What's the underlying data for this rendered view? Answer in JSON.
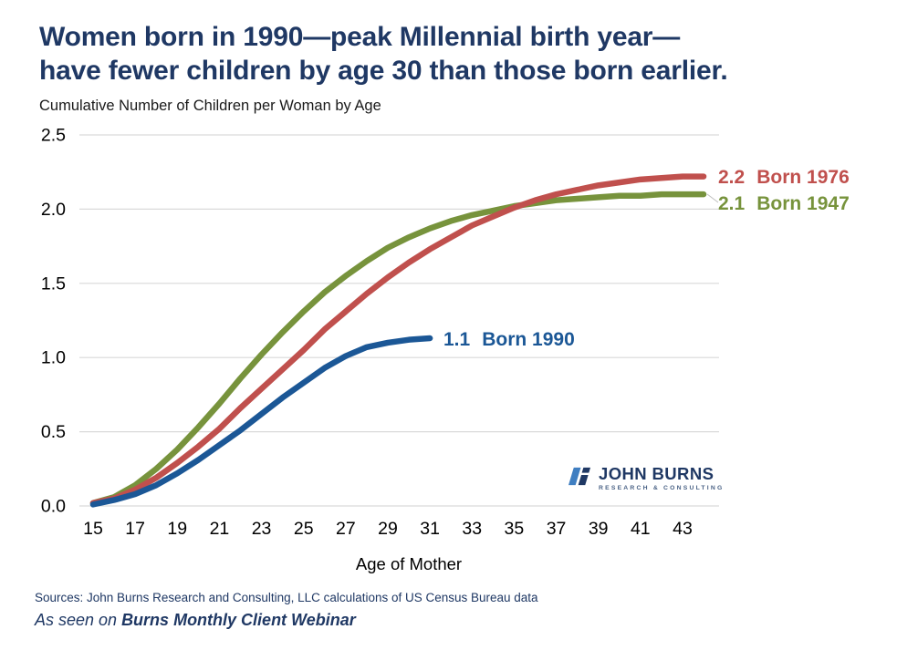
{
  "header": {
    "title_line1": "Women born in 1990—peak Millennial birth year—",
    "title_line2": "have fewer children by age 30 than those born earlier.",
    "subtitle": "Cumulative Number of Children per Woman by Age"
  },
  "chart_data": {
    "type": "line",
    "title": "Cumulative Number of Children per Woman by Age",
    "xlabel": "Age of Mother",
    "ylabel": "",
    "xlim": [
      15,
      44
    ],
    "ylim": [
      0,
      2.5
    ],
    "x_ticks": [
      15,
      17,
      19,
      21,
      23,
      25,
      27,
      29,
      31,
      33,
      35,
      37,
      39,
      41,
      43
    ],
    "y_ticks": [
      "0.0",
      "0.5",
      "1.0",
      "1.5",
      "2.0",
      "2.5"
    ],
    "grid": "horizontal",
    "gridline_color": "#D9D9D9",
    "series": [
      {
        "name": "Born 1947",
        "color": "#77933C",
        "end_label": "2.1",
        "x": [
          15,
          16,
          17,
          18,
          19,
          20,
          21,
          22,
          23,
          24,
          25,
          26,
          27,
          28,
          29,
          30,
          31,
          32,
          33,
          34,
          35,
          36,
          37,
          38,
          39,
          40,
          41,
          42,
          43,
          44
        ],
        "values": [
          0.02,
          0.06,
          0.14,
          0.25,
          0.38,
          0.53,
          0.69,
          0.86,
          1.02,
          1.17,
          1.31,
          1.44,
          1.55,
          1.65,
          1.74,
          1.81,
          1.87,
          1.92,
          1.96,
          1.99,
          2.02,
          2.04,
          2.06,
          2.07,
          2.08,
          2.09,
          2.09,
          2.1,
          2.1,
          2.1
        ]
      },
      {
        "name": "Born 1976",
        "color": "#C0504D",
        "end_label": "2.2",
        "x": [
          15,
          16,
          17,
          18,
          19,
          20,
          21,
          22,
          23,
          24,
          25,
          26,
          27,
          28,
          29,
          30,
          31,
          32,
          33,
          34,
          35,
          36,
          37,
          38,
          39,
          40,
          41,
          42,
          43,
          44
        ],
        "values": [
          0.02,
          0.05,
          0.11,
          0.19,
          0.29,
          0.4,
          0.52,
          0.66,
          0.79,
          0.92,
          1.05,
          1.19,
          1.31,
          1.43,
          1.54,
          1.64,
          1.73,
          1.81,
          1.89,
          1.95,
          2.01,
          2.06,
          2.1,
          2.13,
          2.16,
          2.18,
          2.2,
          2.21,
          2.22,
          2.22
        ]
      },
      {
        "name": "Born 1990",
        "color": "#1B5796",
        "end_label": "1.1",
        "x": [
          15,
          16,
          17,
          18,
          19,
          20,
          21,
          22,
          23,
          24,
          25,
          26,
          27,
          28,
          29,
          30,
          31
        ],
        "values": [
          0.01,
          0.04,
          0.08,
          0.14,
          0.22,
          0.31,
          0.41,
          0.51,
          0.62,
          0.73,
          0.83,
          0.93,
          1.01,
          1.07,
          1.1,
          1.12,
          1.13
        ]
      }
    ]
  },
  "logo": {
    "name": "JOHN BURNS",
    "tagline": "RESEARCH & CONSULTING"
  },
  "sources": "Sources: John Burns Research and Consulting, LLC calculations of US Census Bureau data",
  "footer": {
    "prefix": "As seen on",
    "webinar": "Burns Monthly Client Webinar"
  },
  "colors": {
    "title_navy": "#1F3864",
    "born_1947_green": "#77933C",
    "born_1976_red": "#C0504D",
    "born_1990_blue": "#1B5796",
    "gridline_gray": "#D9D9D9",
    "logo_light_blue": "#3F7EC1"
  }
}
